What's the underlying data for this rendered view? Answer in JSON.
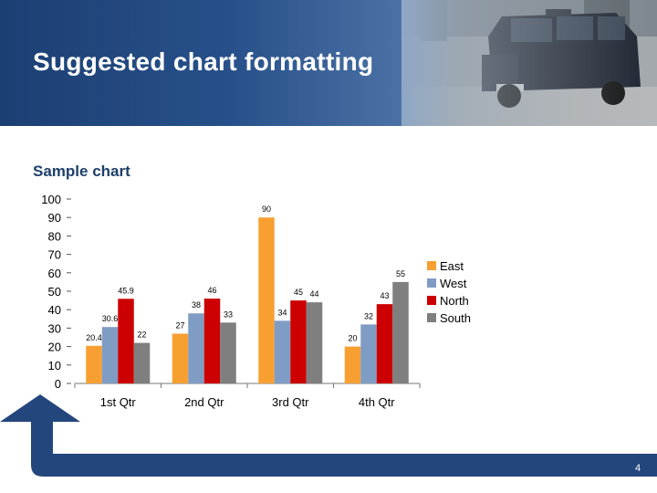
{
  "slide": {
    "title": "Suggested chart formatting",
    "subtitle": "Sample chart",
    "page_number": "4"
  },
  "colors": {
    "header_dark": "#1c3f73",
    "accent_blue": "#23467c",
    "title_text": "#ffffff",
    "subtitle_text": "#1f3f6b"
  },
  "chart_data": {
    "type": "bar",
    "title": "",
    "xlabel": "",
    "ylabel": "",
    "categories": [
      "1st Qtr",
      "2nd Qtr",
      "3rd Qtr",
      "4th Qtr"
    ],
    "ylim": [
      0,
      100
    ],
    "yticks": [
      0,
      10,
      20,
      30,
      40,
      50,
      60,
      70,
      80,
      90,
      100
    ],
    "grid": false,
    "legend_position": "right",
    "series": [
      {
        "name": "East",
        "color": "#f89f32",
        "values": [
          20.4,
          27,
          90,
          20
        ],
        "labels": [
          "20.4",
          "27",
          "90",
          "20"
        ]
      },
      {
        "name": "West",
        "color": "#7f9cc4",
        "values": [
          30.6,
          38,
          34,
          32
        ],
        "labels": [
          "30.6",
          "38",
          "34",
          "32"
        ]
      },
      {
        "name": "North",
        "color": "#cc0000",
        "values": [
          45.9,
          46,
          45,
          43
        ],
        "labels": [
          "45.9",
          "46",
          "45",
          "43"
        ]
      },
      {
        "name": "South",
        "color": "#7f7f7f",
        "values": [
          22,
          33,
          44,
          55
        ],
        "labels": [
          "22",
          "33",
          "44",
          "55"
        ]
      }
    ]
  }
}
